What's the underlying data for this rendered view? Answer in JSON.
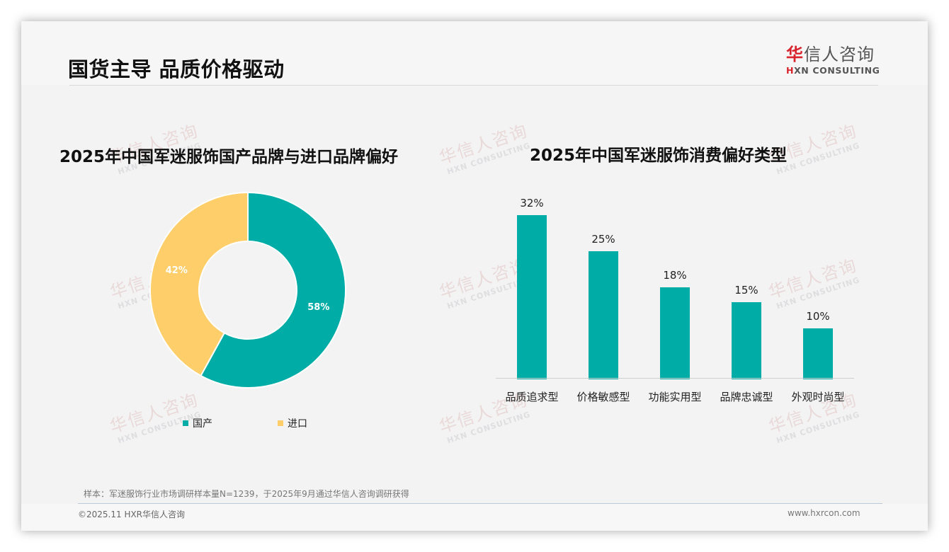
{
  "header": {
    "title": "国货主导 品质价格驱动",
    "logo": {
      "cn_accent": "华",
      "cn_rest": "信人咨询",
      "en_accent": "H",
      "en_rest": "XN CONSULTING"
    }
  },
  "watermark": {
    "cn": "华信人咨询",
    "en": "HXN CONSULTING"
  },
  "left_chart": {
    "title": "2025年中国军迷服饰国产品牌与进口品牌偏好",
    "legend": [
      {
        "label": "国产",
        "color": "#00ADA6"
      },
      {
        "label": "进口",
        "color": "#FDCE6A"
      }
    ],
    "labels": [
      "58%",
      "42%"
    ]
  },
  "right_chart": {
    "title": "2025年中国军迷服饰消费偏好类型",
    "bar_color": "#00ADA6",
    "categories": [
      "品质追求型",
      "价格敏感型",
      "功能实用型",
      "品牌忠诚型",
      "外观时尚型"
    ],
    "value_labels": [
      "32%",
      "25%",
      "18%",
      "15%",
      "10%"
    ]
  },
  "footer": {
    "source": "样本：军迷服饰行业市场调研样本量N=1239，于2025年9月通过华信人咨询调研获得",
    "copyright": "©2025.11 HXR华信人咨询",
    "website": "www.hxrcon.com"
  },
  "chart_data": [
    {
      "type": "pie",
      "title": "2025年中国军迷服饰国产品牌与进口品牌偏好",
      "categories": [
        "国产",
        "进口"
      ],
      "values": [
        58,
        42
      ],
      "unit": "%",
      "colors": [
        "#00ADA6",
        "#FDCE6A"
      ],
      "donut": true,
      "legend_position": "bottom"
    },
    {
      "type": "bar",
      "title": "2025年中国军迷服饰消费偏好类型",
      "categories": [
        "品质追求型",
        "价格敏感型",
        "功能实用型",
        "品牌忠诚型",
        "外观时尚型"
      ],
      "values": [
        32,
        25,
        18,
        15,
        10
      ],
      "unit": "%",
      "xlabel": "",
      "ylabel": "",
      "ylim": [
        0,
        32
      ],
      "grid": false,
      "data_labels": true,
      "colors": [
        "#00ADA6"
      ]
    }
  ]
}
